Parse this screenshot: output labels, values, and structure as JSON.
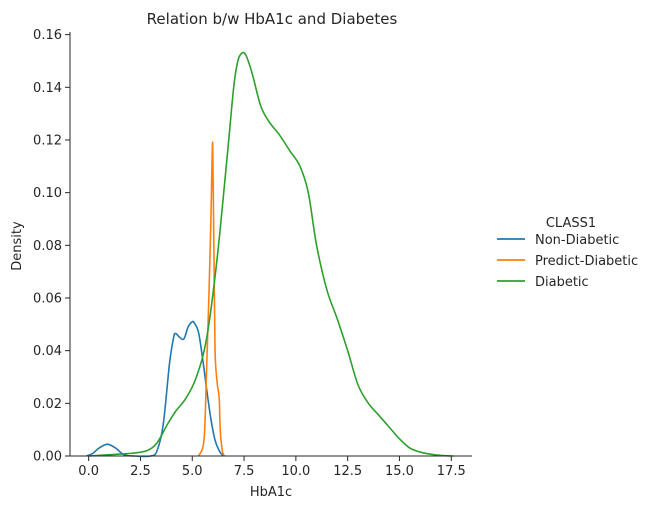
{
  "chart_data": {
    "type": "line",
    "title": "Relation b/w HbA1c and Diabetes",
    "xlabel": "HbA1c",
    "ylabel": "Density",
    "xlim": [
      -0.9,
      18.5
    ],
    "ylim": [
      0,
      0.161
    ],
    "xticks": [
      0.0,
      2.5,
      5.0,
      7.5,
      10.0,
      12.5,
      15.0,
      17.5
    ],
    "xtick_labels": [
      "0.0",
      "2.5",
      "5.0",
      "7.5",
      "10.0",
      "12.5",
      "15.0",
      "17.5"
    ],
    "yticks": [
      0.0,
      0.02,
      0.04,
      0.06,
      0.08,
      0.1,
      0.12,
      0.14,
      0.16
    ],
    "ytick_labels": [
      "0.00",
      "0.02",
      "0.04",
      "0.06",
      "0.08",
      "0.10",
      "0.12",
      "0.14",
      "0.16"
    ],
    "grid": false,
    "legend": {
      "title": "CLASS1",
      "placement": "right"
    },
    "series": [
      {
        "name": "Non-Diabetic",
        "color": "#1f77b4",
        "points": [
          [
            -0.1,
            0
          ],
          [
            0.2,
            0.001
          ],
          [
            0.5,
            0.003
          ],
          [
            0.9,
            0.0045
          ],
          [
            1.3,
            0.003
          ],
          [
            1.7,
            0.0005
          ],
          [
            2.2,
            0
          ],
          [
            3.0,
            0
          ],
          [
            3.3,
            0.002
          ],
          [
            3.6,
            0.012
          ],
          [
            3.9,
            0.035
          ],
          [
            4.1,
            0.045
          ],
          [
            4.2,
            0.0465
          ],
          [
            4.4,
            0.045
          ],
          [
            4.6,
            0.0445
          ],
          [
            4.8,
            0.049
          ],
          [
            5.0,
            0.051
          ],
          [
            5.1,
            0.0505
          ],
          [
            5.3,
            0.047
          ],
          [
            5.5,
            0.037
          ],
          [
            5.7,
            0.025
          ],
          [
            5.9,
            0.014
          ],
          [
            6.1,
            0.006
          ],
          [
            6.3,
            0.002
          ],
          [
            6.5,
            0
          ]
        ]
      },
      {
        "name": "Predict-Diabetic",
        "color": "#ff7f0e",
        "points": [
          [
            5.3,
            0
          ],
          [
            5.5,
            0.003
          ],
          [
            5.6,
            0.01
          ],
          [
            5.7,
            0.035
          ],
          [
            5.8,
            0.06
          ],
          [
            5.9,
            0.09
          ],
          [
            5.97,
            0.118
          ],
          [
            6.0,
            0.11
          ],
          [
            6.05,
            0.075
          ],
          [
            6.1,
            0.04
          ],
          [
            6.2,
            0.028
          ],
          [
            6.3,
            0.022
          ],
          [
            6.35,
            0.01
          ],
          [
            6.45,
            0.002
          ],
          [
            6.55,
            0
          ]
        ]
      },
      {
        "name": "Diabetic",
        "color": "#2ca02c",
        "points": [
          [
            0.0,
            0
          ],
          [
            1.0,
            0.0005
          ],
          [
            2.0,
            0.001
          ],
          [
            2.8,
            0.002
          ],
          [
            3.3,
            0.005
          ],
          [
            3.8,
            0.012
          ],
          [
            4.2,
            0.017
          ],
          [
            4.7,
            0.022
          ],
          [
            5.2,
            0.03
          ],
          [
            5.7,
            0.045
          ],
          [
            6.2,
            0.075
          ],
          [
            6.7,
            0.115
          ],
          [
            7.0,
            0.14
          ],
          [
            7.2,
            0.15
          ],
          [
            7.4,
            0.153
          ],
          [
            7.6,
            0.152
          ],
          [
            7.9,
            0.145
          ],
          [
            8.3,
            0.133
          ],
          [
            8.7,
            0.127
          ],
          [
            9.2,
            0.122
          ],
          [
            9.7,
            0.116
          ],
          [
            10.2,
            0.11
          ],
          [
            10.6,
            0.1
          ],
          [
            11.0,
            0.08
          ],
          [
            11.5,
            0.063
          ],
          [
            12.0,
            0.052
          ],
          [
            12.5,
            0.04
          ],
          [
            13.0,
            0.027
          ],
          [
            13.5,
            0.02
          ],
          [
            14.0,
            0.0155
          ],
          [
            14.5,
            0.011
          ],
          [
            15.0,
            0.0065
          ],
          [
            15.5,
            0.003
          ],
          [
            16.0,
            0.0015
          ],
          [
            16.5,
            0.0007
          ],
          [
            17.0,
            0.0002
          ],
          [
            17.6,
            0
          ]
        ]
      }
    ]
  }
}
